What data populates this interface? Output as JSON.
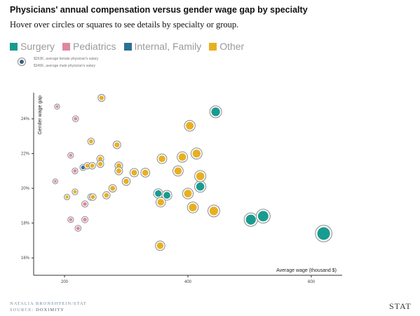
{
  "header": {
    "title": "Physicians' annual compensation versus gender wage gap by specialty",
    "subtitle": "Hover over circles or squares to see details by specialty or group."
  },
  "legend": {
    "items": [
      {
        "label": "Surgery",
        "color": "#1a9b8f"
      },
      {
        "label": "Pediatrics",
        "color": "#e0869f"
      },
      {
        "label": "Internal, Family",
        "color": "#2f6e96"
      },
      {
        "label": "Other",
        "color": "#e8b020"
      }
    ]
  },
  "size_key": {
    "female_label": "$253K, average female physician's salary",
    "male_label": "$345K, average male physician's salary"
  },
  "footer": {
    "credit": "NATALIA BRONSHTEIN/STAT",
    "source_prefix": "SOURCE:",
    "source_name": "DOXIMITY",
    "logo": "STAT"
  },
  "chart_data": {
    "type": "scatter",
    "xlabel": "Average wage (thousand $)",
    "ylabel": "Gender wage gap",
    "xlim": [
      150,
      650
    ],
    "ylim": [
      15.0,
      25.5
    ],
    "x_ticks": [
      200,
      400,
      600
    ],
    "x_tick_labels": [
      "200",
      "400",
      "600"
    ],
    "y_ticks": [
      16,
      18,
      20,
      22,
      24
    ],
    "y_tick_labels": [
      "16%",
      "18%",
      "20%",
      "22%",
      "24%"
    ],
    "grid": false,
    "legend_position": "top",
    "colors": {
      "Surgery": "#1a9b8f",
      "Pediatrics": "#e0869f",
      "Internal, Family": "#2f6e96",
      "Other": "#e8b020"
    },
    "series": [
      {
        "name": "Surgery",
        "points": [
          {
            "x": 445,
            "y": 24.4
          },
          {
            "x": 420,
            "y": 20.1
          },
          {
            "x": 352,
            "y": 19.7
          },
          {
            "x": 366,
            "y": 19.6
          },
          {
            "x": 502,
            "y": 18.2
          },
          {
            "x": 522,
            "y": 18.4
          },
          {
            "x": 620,
            "y": 17.4
          }
        ]
      },
      {
        "name": "Pediatrics",
        "points": [
          {
            "x": 188,
            "y": 24.7
          },
          {
            "x": 218,
            "y": 24.0
          },
          {
            "x": 210,
            "y": 21.9
          },
          {
            "x": 217,
            "y": 21.0
          },
          {
            "x": 185,
            "y": 20.4
          },
          {
            "x": 233,
            "y": 19.1
          },
          {
            "x": 210,
            "y": 18.2
          },
          {
            "x": 233,
            "y": 18.2
          },
          {
            "x": 222,
            "y": 17.7
          }
        ]
      },
      {
        "name": "Internal, Family",
        "points": [
          {
            "x": 230,
            "y": 21.2
          },
          {
            "x": 243,
            "y": 19.5
          }
        ]
      },
      {
        "name": "Other",
        "points": [
          {
            "x": 260,
            "y": 25.2
          },
          {
            "x": 243,
            "y": 22.7
          },
          {
            "x": 285,
            "y": 22.5
          },
          {
            "x": 258,
            "y": 21.7
          },
          {
            "x": 258,
            "y": 21.4
          },
          {
            "x": 237,
            "y": 21.3
          },
          {
            "x": 245,
            "y": 21.3
          },
          {
            "x": 288,
            "y": 21.3
          },
          {
            "x": 288,
            "y": 21.0
          },
          {
            "x": 278,
            "y": 20.0
          },
          {
            "x": 300,
            "y": 20.4
          },
          {
            "x": 268,
            "y": 19.6
          },
          {
            "x": 204,
            "y": 19.5
          },
          {
            "x": 217,
            "y": 19.8
          },
          {
            "x": 246,
            "y": 19.5
          },
          {
            "x": 313,
            "y": 20.9
          },
          {
            "x": 331,
            "y": 20.9
          },
          {
            "x": 358,
            "y": 21.7
          },
          {
            "x": 403,
            "y": 23.6
          },
          {
            "x": 391,
            "y": 21.8
          },
          {
            "x": 414,
            "y": 22.0
          },
          {
            "x": 384,
            "y": 21.0
          },
          {
            "x": 420,
            "y": 20.7
          },
          {
            "x": 400,
            "y": 19.7
          },
          {
            "x": 356,
            "y": 19.2
          },
          {
            "x": 408,
            "y": 18.9
          },
          {
            "x": 442,
            "y": 18.7
          },
          {
            "x": 355,
            "y": 16.7
          }
        ]
      }
    ]
  }
}
